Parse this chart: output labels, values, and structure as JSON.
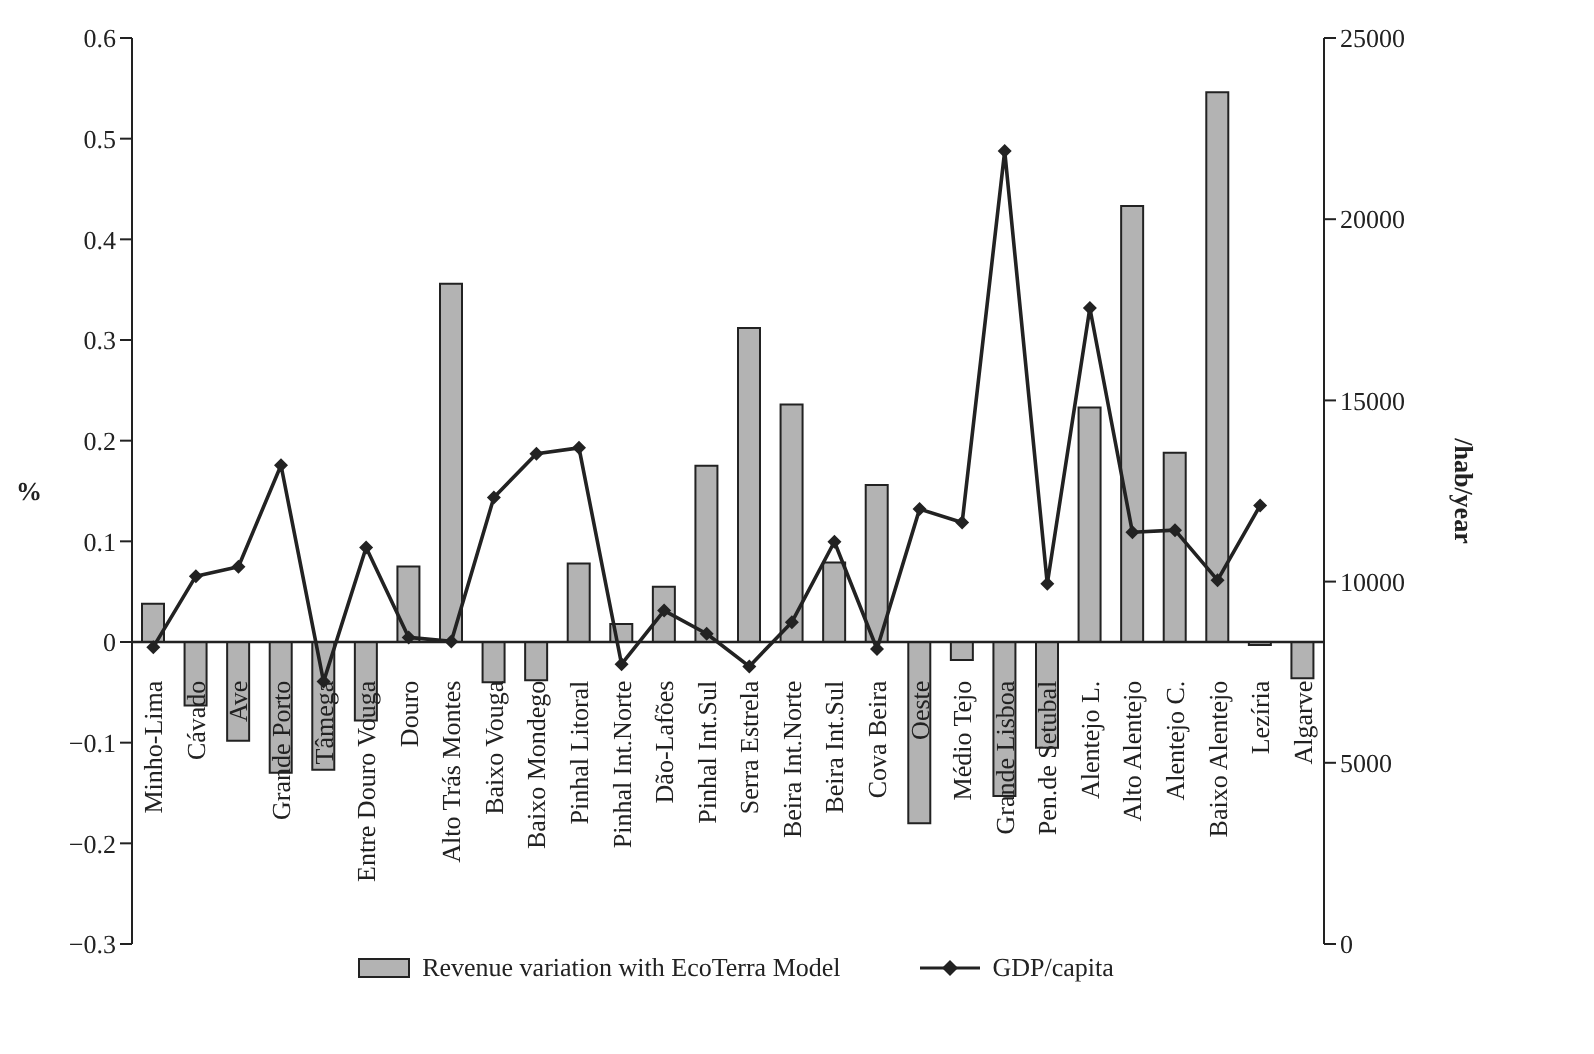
{
  "chart_data": {
    "type": "bar",
    "ylabel": "%",
    "y2label": "/hab/year",
    "legend": "bottom",
    "categories": [
      "Minho-Lima",
      "Cávado",
      "Ave",
      "Grande Porto",
      "Tâmega",
      "Entre Douro Vouga",
      "Douro",
      "Alto Trás Montes",
      "Baixo Vouga",
      "Baixo Mondego",
      "Pinhal Litoral",
      "Pinhal Int.Norte",
      "Dão-Lafões",
      "Pinhal Int.Sul",
      "Serra Estrela",
      "Beira Int.Norte",
      "Beira Int.Sul",
      "Cova Beira",
      "Oeste",
      "Médio Tejo",
      "Grande Lisboa",
      "Pen.de Setubal",
      "Alentejo L.",
      "Alto Alentejo",
      "Alentejo C.",
      "Baixo Alentejo",
      "Lezíria",
      "Algarve"
    ],
    "series": [
      {
        "name": "Revenue variation with EcoTerra Model",
        "color": "#b3b3b3",
        "values": [
          0.038,
          -0.063,
          -0.098,
          -0.13,
          -0.127,
          -0.078,
          0.075,
          0.356,
          -0.04,
          -0.038,
          0.078,
          0.018,
          0.055,
          0.175,
          0.312,
          0.236,
          0.079,
          0.156,
          -0.18,
          -0.018,
          -0.153,
          -0.105,
          0.233,
          0.433,
          0.188,
          0.546,
          -0.003,
          -0.036
        ]
      },
      {
        "name": "GDP/capita",
        "type": "line",
        "axis": "y2",
        "color": "#222222",
        "marker": "diamond",
        "values": [
          8190,
          10150,
          10410,
          13210,
          7240,
          10940,
          8460,
          8350,
          12320,
          13530,
          13690,
          7720,
          9200,
          8560,
          7660,
          8880,
          11100,
          8140,
          12000,
          11630,
          21880,
          9940,
          17550,
          11360,
          11420,
          10040,
          12100,
          null
        ]
      }
    ],
    "ylim": [
      -0.3,
      0.6
    ],
    "yticks": [
      -0.3,
      -0.2,
      -0.1,
      0,
      0.1,
      0.2,
      0.3,
      0.4,
      0.5,
      0.6
    ],
    "y2lim": [
      0,
      25000
    ],
    "y2ticks": [
      0,
      5000,
      10000,
      15000,
      20000,
      25000
    ]
  }
}
